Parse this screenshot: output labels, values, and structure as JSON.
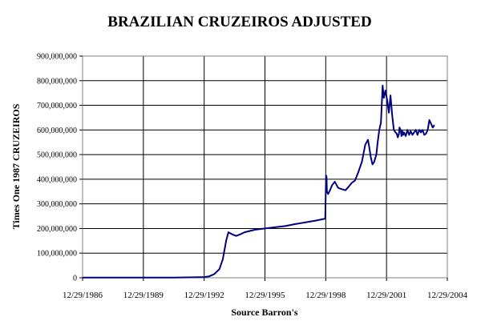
{
  "chart_data": {
    "type": "line",
    "title": "BRAZILIAN CRUZEIROS ADJUSTED",
    "xlabel": "Source Barron's",
    "ylabel": "Times One 1987 CRUZEIROS",
    "x_ticks": [
      "12/29/1986",
      "12/29/1989",
      "12/29/1992",
      "12/29/1995",
      "12/29/1998",
      "12/29/2001",
      "12/29/2004"
    ],
    "y_ticks": [
      "0",
      "100,000,000",
      "200,000,000",
      "300,000,000",
      "400,000,000",
      "500,000,000",
      "600,000,000",
      "700,000,000",
      "800,000,000",
      "900,000,000"
    ],
    "xlim": [
      "1986-12-29",
      "2004-12-29"
    ],
    "ylim": [
      0,
      900000000
    ],
    "grid": true,
    "legend": "none",
    "line_color": "#000080",
    "series": [
      {
        "x": [
          "1986-12-29",
          "1988-06-29",
          "1989-12-29",
          "1991-06-29",
          "1992-06-29",
          "1992-12-29",
          "1993-03-29",
          "1993-06-29",
          "1993-09-29",
          "1993-11-29",
          "1994-01-29",
          "1994-03-10",
          "1994-05-29",
          "1994-07-29",
          "1994-09-29",
          "1994-12-29",
          "1995-06-29",
          "1995-12-29",
          "1996-06-29",
          "1996-12-29",
          "1997-06-29",
          "1997-12-29",
          "1998-06-29",
          "1998-12-20",
          "1999-01-05",
          "1999-01-12",
          "1999-01-20",
          "1999-02-10",
          "1999-03-15",
          "1999-04-20",
          "1999-06-10",
          "1999-08-10",
          "1999-10-10",
          "1999-12-20",
          "2000-02-10",
          "2000-04-10",
          "2000-06-10",
          "2000-08-10",
          "2000-10-10",
          "2000-12-10",
          "2001-01-29",
          "2001-02-20",
          "2001-03-20",
          "2001-04-20",
          "2001-05-20",
          "2001-06-29",
          "2001-07-20",
          "2001-08-20",
          "2001-09-20",
          "2001-10-20",
          "2001-11-10",
          "2001-12-10",
          "2002-01-10",
          "2002-02-10",
          "2002-03-10",
          "2002-04-10",
          "2002-05-10",
          "2002-06-10",
          "2002-07-01",
          "2002-07-20",
          "2002-08-10",
          "2002-08-20",
          "2002-09-10",
          "2002-09-25",
          "2002-10-10",
          "2002-10-25",
          "2002-11-10",
          "2002-12-10",
          "2003-01-10",
          "2003-02-10",
          "2003-03-10",
          "2003-04-10",
          "2003-05-10",
          "2003-06-10",
          "2003-07-10",
          "2003-08-10",
          "2003-09-10",
          "2003-10-10",
          "2003-11-10",
          "2003-12-10",
          "2004-01-10",
          "2004-02-10",
          "2004-03-10",
          "2004-04-10",
          "2004-05-10"
        ],
        "y": [
          1000000,
          1000000,
          1000000,
          1000000,
          2000000,
          3000000,
          6000000,
          15000000,
          35000000,
          75000000,
          150000000,
          185000000,
          175000000,
          170000000,
          175000000,
          185000000,
          195000000,
          200000000,
          205000000,
          210000000,
          218000000,
          225000000,
          232000000,
          240000000,
          415000000,
          410000000,
          350000000,
          340000000,
          355000000,
          375000000,
          390000000,
          365000000,
          360000000,
          355000000,
          368000000,
          385000000,
          395000000,
          430000000,
          470000000,
          540000000,
          560000000,
          530000000,
          490000000,
          460000000,
          470000000,
          500000000,
          545000000,
          600000000,
          630000000,
          780000000,
          730000000,
          760000000,
          720000000,
          670000000,
          740000000,
          660000000,
          600000000,
          590000000,
          585000000,
          570000000,
          585000000,
          610000000,
          600000000,
          575000000,
          595000000,
          580000000,
          590000000,
          575000000,
          600000000,
          580000000,
          595000000,
          580000000,
          590000000,
          600000000,
          580000000,
          600000000,
          590000000,
          600000000,
          580000000,
          585000000,
          600000000,
          640000000,
          625000000,
          610000000,
          620000000
        ]
      }
    ]
  }
}
